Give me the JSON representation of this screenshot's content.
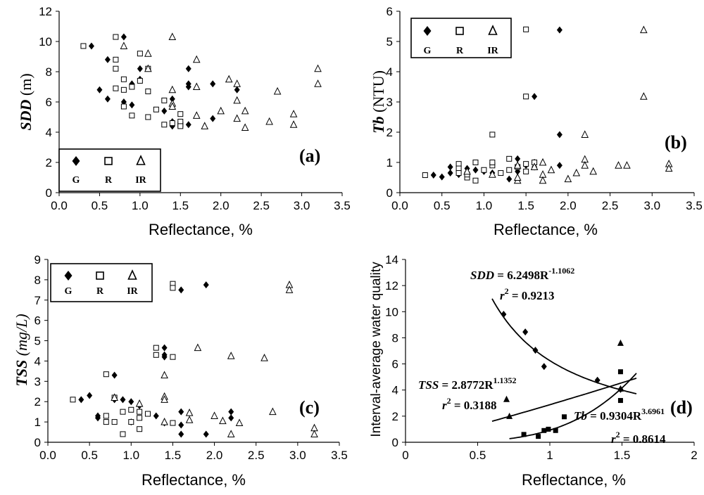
{
  "chart_data": [
    {
      "panel": "(a)",
      "type": "scatter",
      "xlabel": "Reflectance, %",
      "ylabel_main": "SDD",
      "ylabel_unit": " (m)",
      "xlim": [
        0,
        3.5
      ],
      "ylim": [
        0,
        12
      ],
      "xticks": [
        "0.0",
        "0.5",
        "1.0",
        "1.5",
        "2.0",
        "2.5",
        "3.0",
        "3.5"
      ],
      "yticks": [
        "0",
        "2",
        "4",
        "6",
        "8",
        "10",
        "12"
      ],
      "legend": {
        "position": "bottom-left",
        "entries": [
          "G",
          "R",
          "IR"
        ]
      },
      "series": [
        {
          "name": "G",
          "marker": "diamond",
          "x": [
            0.4,
            0.5,
            0.6,
            0.6,
            0.8,
            0.9,
            0.9,
            1.0,
            1.0,
            1.3,
            1.4,
            1.4,
            1.4,
            1.6,
            1.6,
            1.6,
            1.6,
            1.9,
            1.9,
            2.2,
            0.8
          ],
          "y": [
            9.7,
            6.8,
            8.8,
            6.2,
            6.0,
            5.8,
            7.2,
            7.5,
            8.2,
            5.4,
            4.7,
            4.4,
            6.2,
            8.2,
            7.2,
            7.0,
            4.5,
            7.2,
            4.9,
            6.8,
            10.3
          ]
        },
        {
          "name": "R",
          "marker": "square",
          "x": [
            0.3,
            0.7,
            0.7,
            0.7,
            0.7,
            0.8,
            0.8,
            0.8,
            0.9,
            0.9,
            1.0,
            1.0,
            1.1,
            1.1,
            1.1,
            1.2,
            1.3,
            1.3,
            1.4,
            1.5,
            1.5,
            1.5,
            1.5
          ],
          "y": [
            9.7,
            10.3,
            8.8,
            8.2,
            6.9,
            7.5,
            6.8,
            5.7,
            5.1,
            7.0,
            9.2,
            7.4,
            8.2,
            6.7,
            5.0,
            5.5,
            6.1,
            4.5,
            4.6,
            5.2,
            4.5,
            4.7,
            4.4
          ]
        },
        {
          "name": "IR",
          "marker": "triangle",
          "x": [
            0.8,
            1.1,
            1.1,
            1.4,
            1.4,
            1.4,
            1.7,
            1.7,
            1.8,
            1.7,
            2.0,
            2.1,
            2.2,
            2.2,
            2.2,
            2.3,
            2.3,
            2.6,
            2.7,
            2.9,
            2.9,
            3.2,
            3.2,
            1.4
          ],
          "y": [
            9.7,
            9.2,
            8.2,
            6.8,
            5.9,
            10.3,
            8.8,
            7.0,
            4.4,
            5.1,
            5.4,
            7.5,
            7.2,
            6.1,
            4.9,
            5.4,
            4.3,
            4.7,
            6.7,
            5.2,
            4.5,
            8.2,
            7.2,
            5.7
          ]
        }
      ]
    },
    {
      "panel": "(b)",
      "type": "scatter",
      "xlabel": "Reflectance, %",
      "ylabel_main": "Tb",
      "ylabel_unit": " (NTU)",
      "xlim": [
        0,
        3.5
      ],
      "ylim": [
        0,
        6
      ],
      "xticks": [
        "0.0",
        "0.5",
        "1.0",
        "1.5",
        "2.0",
        "2.5",
        "3.0",
        "3.5"
      ],
      "yticks": [
        "0",
        "1",
        "2",
        "3",
        "4",
        "5",
        "6"
      ],
      "legend": {
        "position": "top-left",
        "entries": [
          "G",
          "R",
          "IR"
        ]
      },
      "series": [
        {
          "name": "G",
          "marker": "diamond",
          "x": [
            0.4,
            0.5,
            0.6,
            0.6,
            0.7,
            0.8,
            0.9,
            1.0,
            1.1,
            1.3,
            1.4,
            1.4,
            1.4,
            1.5,
            1.6,
            1.6,
            1.6,
            1.9,
            1.9,
            1.9
          ],
          "y": [
            0.58,
            0.52,
            0.85,
            0.65,
            0.6,
            0.8,
            0.75,
            0.7,
            0.65,
            0.45,
            1.12,
            0.85,
            0.7,
            0.9,
            3.18,
            1.0,
            0.85,
            5.38,
            1.92,
            0.9
          ]
        },
        {
          "name": "R",
          "marker": "square",
          "x": [
            0.3,
            0.7,
            0.7,
            0.7,
            0.8,
            0.8,
            0.9,
            0.9,
            1.0,
            1.1,
            1.1,
            1.2,
            1.3,
            1.3,
            1.4,
            1.5,
            1.5,
            1.5,
            1.6,
            1.1,
            1.5
          ],
          "y": [
            0.58,
            0.95,
            0.8,
            0.65,
            0.5,
            0.6,
            1.0,
            0.4,
            0.75,
            0.9,
            1.0,
            0.65,
            1.12,
            0.75,
            0.85,
            0.7,
            0.95,
            3.18,
            1.0,
            1.92,
            5.4
          ]
        },
        {
          "name": "IR",
          "marker": "triangle",
          "x": [
            0.8,
            1.1,
            1.4,
            1.4,
            1.6,
            1.7,
            1.7,
            1.8,
            2.0,
            2.1,
            2.2,
            2.2,
            2.2,
            2.3,
            2.6,
            2.7,
            2.9,
            2.9,
            3.2,
            3.2,
            1.7,
            1.4
          ],
          "y": [
            0.7,
            0.6,
            0.4,
            0.5,
            0.85,
            1.0,
            0.6,
            0.75,
            0.45,
            0.65,
            1.92,
            1.1,
            0.9,
            0.7,
            0.9,
            0.9,
            5.38,
            3.18,
            0.95,
            0.8,
            0.4,
            0.9
          ]
        }
      ]
    },
    {
      "panel": "(c)",
      "type": "scatter",
      "xlabel": "Reflectance, %",
      "ylabel_main": "TSS",
      "ylabel_unit": " (mg/L)",
      "xlim": [
        0,
        3.5
      ],
      "ylim": [
        0,
        9
      ],
      "xticks": [
        "0.0",
        "0.5",
        "1.0",
        "1.5",
        "2.0",
        "2.5",
        "3.0",
        "3.5"
      ],
      "yticks": [
        "0",
        "1",
        "2",
        "3",
        "4",
        "5",
        "6",
        "7",
        "8",
        "9"
      ],
      "legend": {
        "position": "top-left",
        "entries": [
          "G",
          "R",
          "IR"
        ]
      },
      "series": [
        {
          "name": "G",
          "marker": "diamond",
          "x": [
            0.4,
            0.5,
            0.6,
            0.6,
            0.8,
            0.8,
            0.9,
            1.0,
            1.0,
            1.1,
            1.3,
            1.4,
            1.4,
            1.4,
            1.4,
            1.6,
            1.6,
            1.6,
            1.6,
            1.9,
            1.9,
            2.2,
            2.2
          ],
          "y": [
            2.1,
            2.3,
            1.3,
            1.2,
            3.3,
            2.1,
            2.1,
            2.0,
            1.0,
            1.8,
            1.3,
            4.65,
            4.2,
            4.3,
            0.95,
            7.5,
            1.5,
            0.85,
            0.4,
            7.75,
            0.4,
            1.5,
            1.2
          ]
        },
        {
          "name": "R",
          "marker": "square",
          "x": [
            0.3,
            0.7,
            0.7,
            0.7,
            0.8,
            0.8,
            0.9,
            0.9,
            1.0,
            1.0,
            1.1,
            1.1,
            1.1,
            1.2,
            1.3,
            1.3,
            1.5,
            1.5,
            1.5,
            1.5
          ],
          "y": [
            2.1,
            3.35,
            1.3,
            1.0,
            2.2,
            1.0,
            1.5,
            0.4,
            1.6,
            1.0,
            1.2,
            1.5,
            0.65,
            1.4,
            4.65,
            4.3,
            7.8,
            7.6,
            4.2,
            0.95
          ]
        },
        {
          "name": "IR",
          "marker": "triangle",
          "x": [
            0.8,
            1.1,
            1.4,
            1.4,
            1.7,
            1.7,
            1.8,
            2.0,
            2.1,
            2.2,
            2.2,
            2.3,
            2.6,
            2.7,
            2.9,
            2.9,
            3.2,
            3.2,
            1.4,
            1.4
          ],
          "y": [
            2.2,
            1.9,
            3.3,
            2.25,
            1.45,
            1.1,
            4.65,
            1.3,
            1.05,
            4.25,
            0.4,
            0.95,
            4.15,
            1.5,
            7.75,
            7.5,
            0.7,
            0.4,
            2.1,
            1.0
          ]
        }
      ]
    },
    {
      "panel": "(d)",
      "type": "scatter",
      "xlabel": "Reflectance, %",
      "ylabel": "Interval-average water quality",
      "xlim": [
        0,
        2
      ],
      "ylim": [
        0,
        14
      ],
      "xticks": [
        "0",
        "0.5",
        "1",
        "1.5",
        "2"
      ],
      "yticks": [
        "0",
        "2",
        "4",
        "6",
        "8",
        "10",
        "12",
        "14"
      ],
      "series": [
        {
          "name": "SDD",
          "marker": "diamond",
          "x": [
            0.68,
            0.83,
            0.9,
            0.96,
            1.33,
            1.49
          ],
          "y": [
            9.8,
            8.45,
            7.05,
            5.8,
            4.75,
            4.05
          ],
          "fit": {
            "a": 6.2498,
            "b": -1.1062,
            "xrange": [
              0.6,
              1.6
            ]
          }
        },
        {
          "name": "TSS",
          "marker": "triangle",
          "x": [
            0.7,
            0.72,
            1.49,
            1.49
          ],
          "y": [
            3.3,
            2.0,
            7.6,
            4.1
          ],
          "fit": {
            "a": 2.8772,
            "b": 1.1352,
            "xrange": [
              0.6,
              1.6
            ]
          }
        },
        {
          "name": "Tb",
          "marker": "square",
          "x": [
            0.82,
            0.92,
            0.96,
            0.99,
            1.04,
            1.1,
            1.49,
            1.49
          ],
          "y": [
            0.6,
            0.45,
            0.9,
            1.0,
            0.9,
            1.95,
            5.4,
            3.2
          ],
          "fit": {
            "a": 0.9304,
            "b": 3.6961,
            "xrange": [
              0.72,
              1.6
            ]
          }
        }
      ],
      "annotations": {
        "sdd_eq_left": "SDD",
        "sdd_eq_right": " = 6.2498R",
        "sdd_eq_exp": "-1.1062",
        "sdd_r2_lead": "r",
        "sdd_r2_sup": "2",
        "sdd_r2_val": " = 0.9213",
        "tss_eq_left": "TSS",
        "tss_eq_right": " = 2.8772R",
        "tss_eq_exp": "1.1352",
        "tss_r2_lead": "r",
        "tss_r2_sup": "2",
        "tss_r2_val": " = 0.3188",
        "tb_eq_left": "Tb",
        "tb_eq_right": " = 0.9304R",
        "tb_eq_exp": "3.6961",
        "tb_r2_lead": "r",
        "tb_r2_sup": "2",
        "tb_r2_val": " = 0.8614"
      }
    }
  ]
}
